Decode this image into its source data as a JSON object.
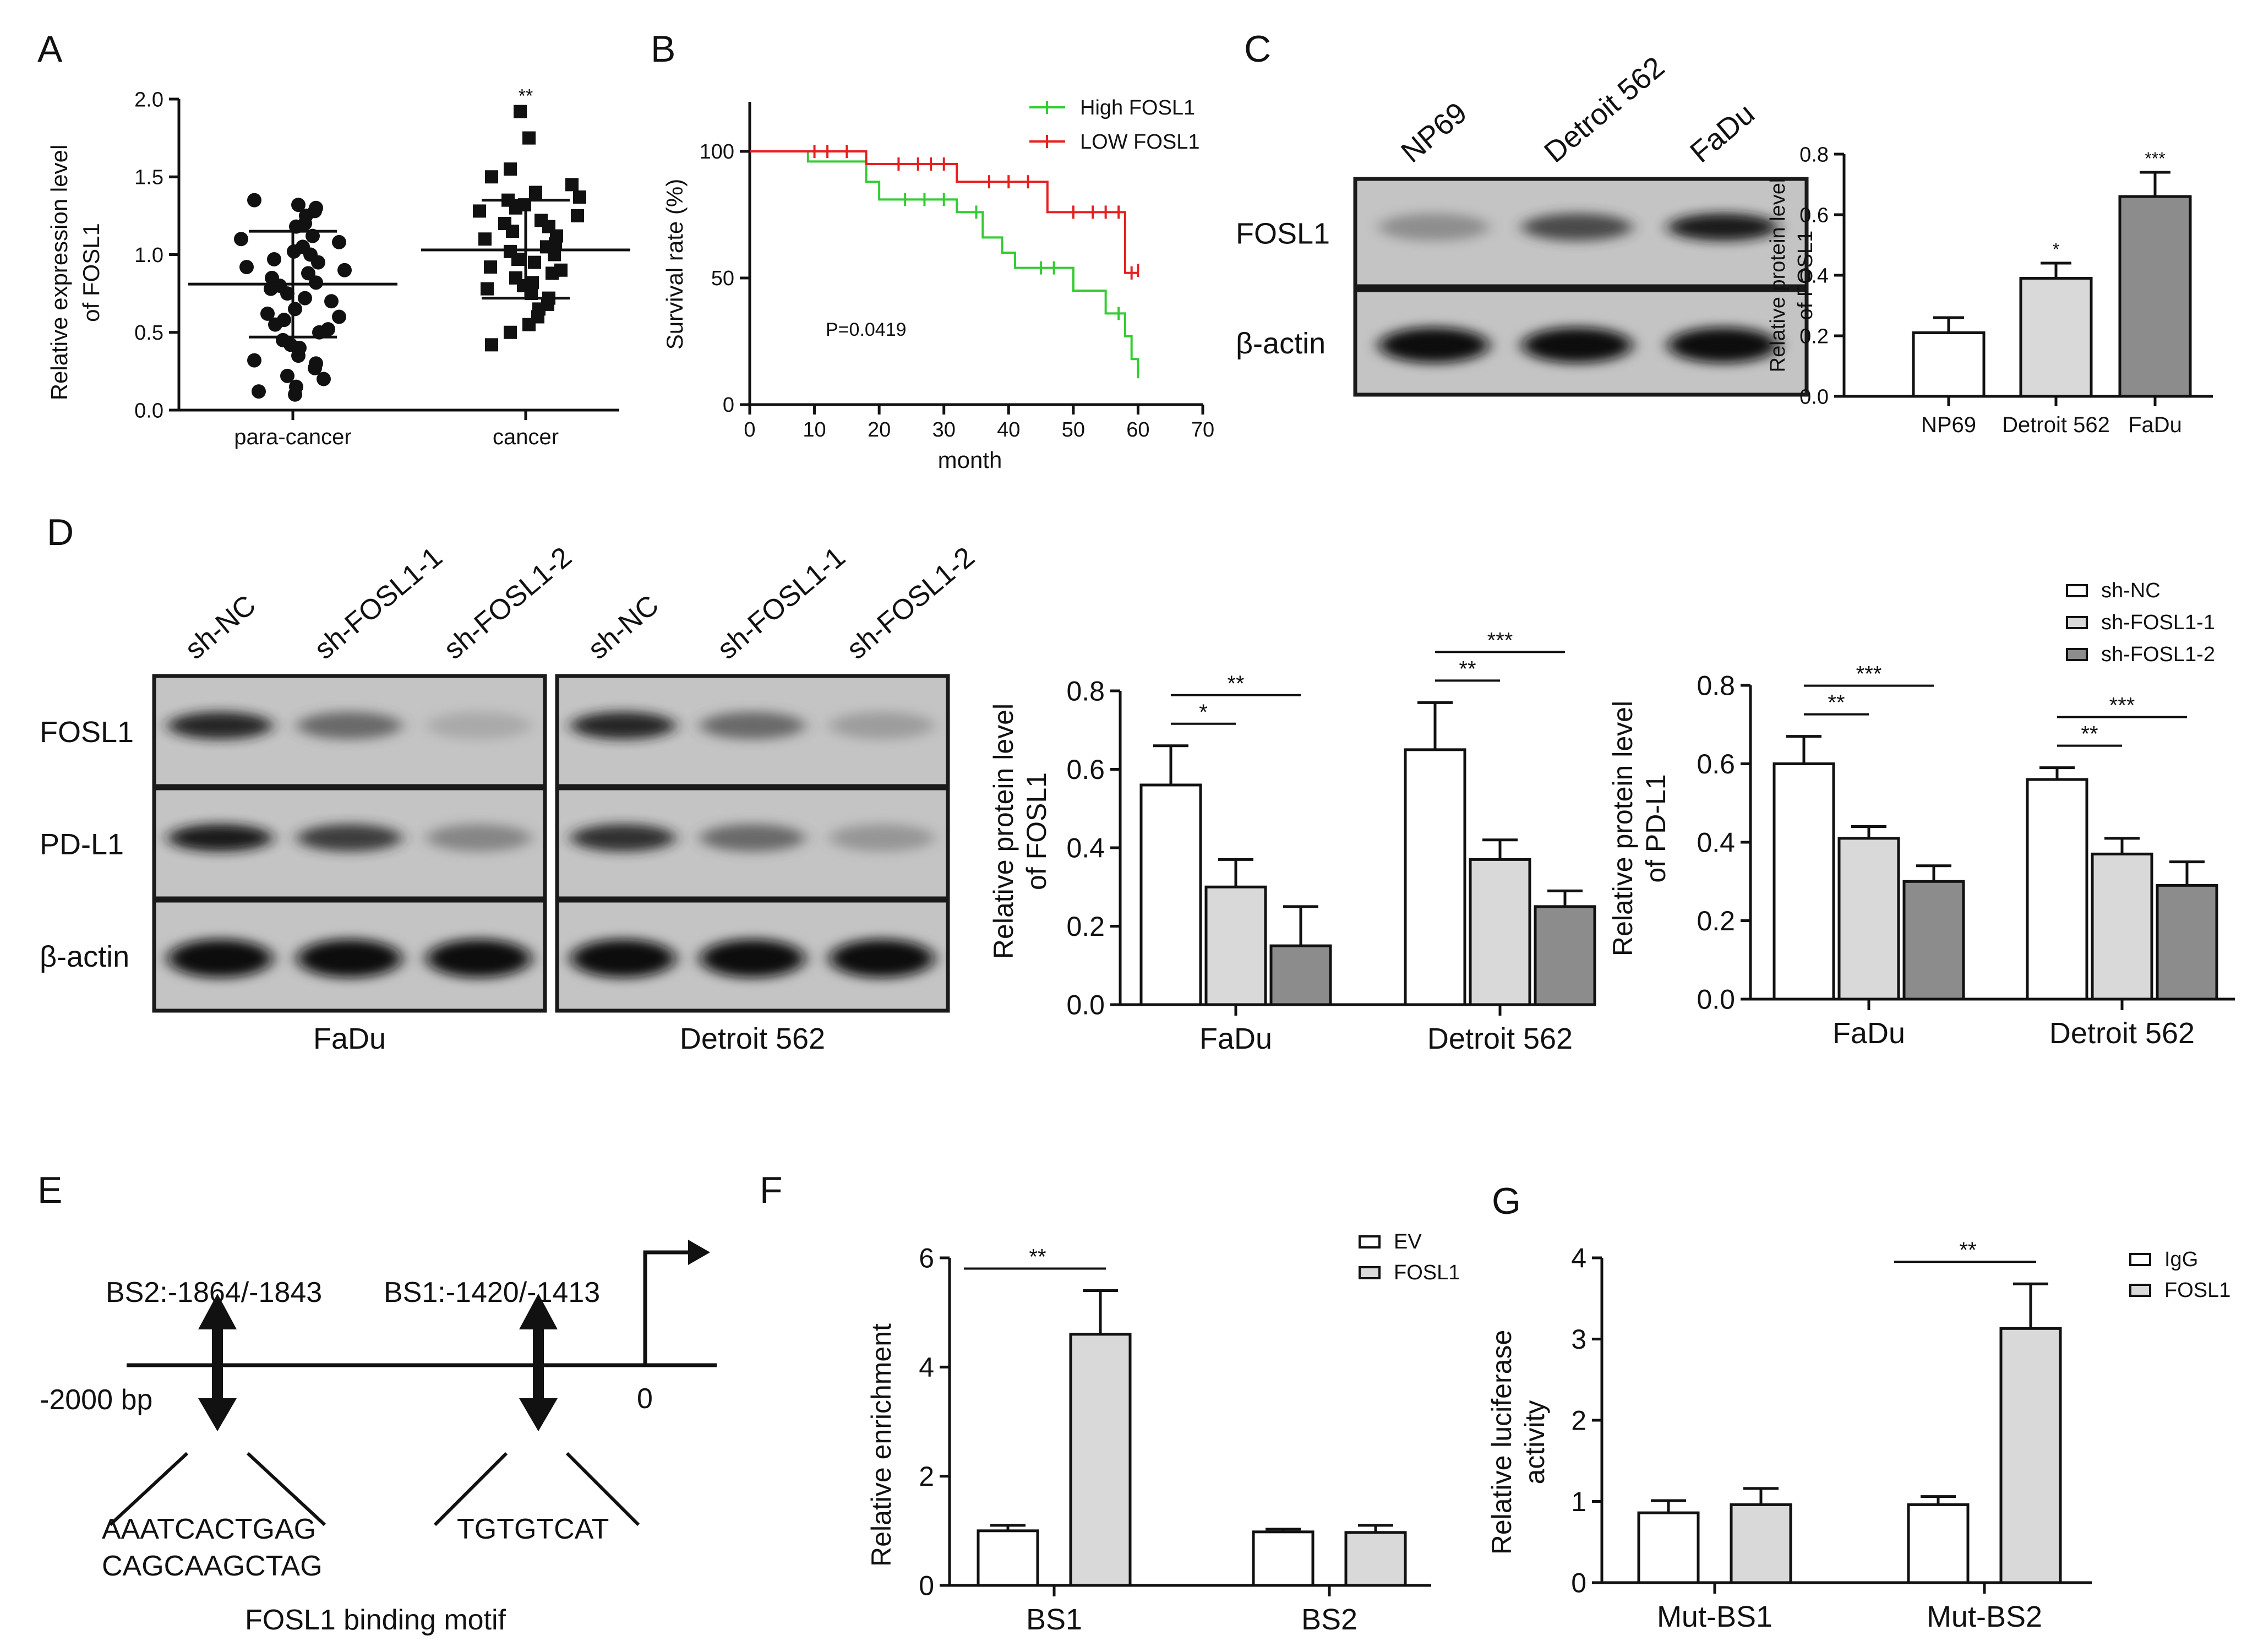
{
  "panels": {
    "A": {
      "letter": "A",
      "chart_data": {
        "type": "scatter",
        "ylabel_line1": "Relative expression level",
        "ylabel_line2": "of FOSL1",
        "ylim": [
          0,
          2.0
        ],
        "yticks": [
          "0.0",
          "0.5",
          "1.0",
          "1.5",
          "2.0"
        ],
        "tick_values": [
          0,
          0.5,
          1.0,
          1.5,
          2.0
        ],
        "groups": [
          {
            "label": "para-cancer",
            "mean": 0.81,
            "sd_low": 0.47,
            "sd_high": 1.15,
            "points": [
              0.12,
              0.1,
              0.15,
              0.22,
              0.2,
              0.27,
              0.3,
              0.35,
              0.32,
              0.42,
              0.4,
              0.45,
              0.5,
              0.52,
              0.55,
              0.58,
              0.62,
              0.6,
              0.65,
              0.7,
              0.72,
              0.75,
              0.78,
              0.8,
              0.82,
              0.85,
              0.88,
              0.9,
              0.92,
              0.95,
              0.97,
              1.0,
              1.02,
              1.05,
              1.08,
              1.1,
              1.12,
              1.18,
              1.2,
              1.25,
              1.28,
              1.3,
              1.32,
              1.35
            ]
          },
          {
            "label": "cancer",
            "mean": 1.03,
            "sd_low": 0.72,
            "sd_high": 1.35,
            "sig": "**",
            "points": [
              0.42,
              0.5,
              0.55,
              0.6,
              0.65,
              0.68,
              0.72,
              0.75,
              0.78,
              0.8,
              0.82,
              0.85,
              0.88,
              0.9,
              0.92,
              0.95,
              0.97,
              1.0,
              1.02,
              1.05,
              1.07,
              1.1,
              1.12,
              1.15,
              1.18,
              1.2,
              1.22,
              1.25,
              1.28,
              1.3,
              1.32,
              1.35,
              1.37,
              1.4,
              1.45,
              1.5,
              1.55,
              1.75,
              1.92
            ]
          }
        ]
      }
    },
    "B": {
      "letter": "B",
      "chart_data": {
        "type": "line",
        "xlabel": "month",
        "ylabel": "Survival rate (%)",
        "xlim": [
          0,
          70
        ],
        "ylim": [
          0,
          100
        ],
        "xticks": [
          "0",
          "10",
          "20",
          "30",
          "40",
          "50",
          "60",
          "70"
        ],
        "yticks": [
          "0",
          "50",
          "100"
        ],
        "annotation": "P=0.0419",
        "series": [
          {
            "name": "High FOSL1",
            "color": "#33cc33",
            "steps": [
              [
                0,
                100
              ],
              [
                9,
                100
              ],
              [
                9,
                96
              ],
              [
                18,
                96
              ],
              [
                18,
                88
              ],
              [
                20,
                88
              ],
              [
                20,
                81
              ],
              [
                32,
                81
              ],
              [
                32,
                76
              ],
              [
                36,
                76
              ],
              [
                36,
                66
              ],
              [
                39,
                66
              ],
              [
                39,
                60
              ],
              [
                41,
                60
              ],
              [
                41,
                54
              ],
              [
                50,
                54
              ],
              [
                50,
                45
              ],
              [
                55,
                45
              ],
              [
                55,
                36
              ],
              [
                58,
                36
              ],
              [
                58,
                27
              ],
              [
                59,
                27
              ],
              [
                59,
                18
              ],
              [
                60,
                18
              ],
              [
                60,
                12
              ]
            ],
            "censor": [
              [
                24,
                81
              ],
              [
                27,
                81
              ],
              [
                30,
                81
              ],
              [
                35,
                76
              ],
              [
                45,
                54
              ],
              [
                47,
                54
              ],
              [
                57,
                36
              ],
              [
                60,
                13
              ]
            ]
          },
          {
            "name": "LOW FOSL1",
            "color": "#e62020",
            "steps": [
              [
                0,
                100
              ],
              [
                18,
                100
              ],
              [
                18,
                95
              ],
              [
                32,
                95
              ],
              [
                32,
                88
              ],
              [
                46,
                88
              ],
              [
                46,
                76
              ],
              [
                58,
                76
              ],
              [
                58,
                52
              ],
              [
                60,
                52
              ]
            ],
            "censor": [
              [
                10,
                100
              ],
              [
                12,
                100
              ],
              [
                15,
                100
              ],
              [
                23,
                95
              ],
              [
                26,
                95
              ],
              [
                28,
                95
              ],
              [
                30,
                95
              ],
              [
                37,
                88
              ],
              [
                40,
                88
              ],
              [
                43,
                88
              ],
              [
                50,
                76
              ],
              [
                53,
                76
              ],
              [
                55,
                76
              ],
              [
                57,
                76
              ],
              [
                59,
                52
              ],
              [
                60,
                53
              ]
            ]
          }
        ]
      }
    },
    "C": {
      "letter": "C",
      "blot": {
        "lanes": [
          "NP69",
          "Detroit 562",
          "FaDu"
        ],
        "rows": [
          {
            "label": "FOSL1",
            "intensity": [
              0.4,
              0.75,
              0.95
            ]
          },
          {
            "label": "β-actin",
            "intensity": [
              1.0,
              1.0,
              1.0
            ]
          }
        ]
      },
      "chart_data": {
        "type": "bar",
        "ylabel_line1": "Relative protein level",
        "ylabel_line2": "of FOSL1",
        "categories": [
          "NP69",
          "Detroit 562",
          "FaDu"
        ],
        "values": [
          0.21,
          0.39,
          0.66
        ],
        "errors": [
          0.05,
          0.05,
          0.08
        ],
        "sig": [
          "",
          "*",
          "***"
        ],
        "colors": [
          "#ffffff",
          "#d9d9d9",
          "#8c8c8c"
        ],
        "ylim": [
          0,
          0.8
        ],
        "yticks": [
          "0.0",
          "0.2",
          "0.4",
          "0.6",
          "0.8"
        ]
      }
    },
    "D": {
      "letter": "D",
      "blot": {
        "groups": [
          {
            "caption": "FaDu",
            "lanes": [
              "sh-NC",
              "sh-FOSL1-1",
              "sh-FOSL1-2"
            ]
          },
          {
            "caption": "Detroit 562",
            "lanes": [
              "sh-NC",
              "sh-FOSL1-1",
              "sh-FOSL1-2"
            ]
          }
        ],
        "rows": [
          {
            "label": "FOSL1",
            "intensity": [
              [
                0.9,
                0.6,
                0.2
              ],
              [
                0.9,
                0.6,
                0.3
              ]
            ]
          },
          {
            "label": "PD-L1",
            "intensity": [
              [
                0.95,
                0.8,
                0.45
              ],
              [
                0.85,
                0.6,
                0.35
              ]
            ]
          },
          {
            "label": "β-actin",
            "intensity": [
              [
                1.0,
                1.0,
                1.0
              ],
              [
                1.0,
                1.0,
                1.0
              ]
            ]
          }
        ]
      },
      "legend": [
        "sh-NC",
        "sh-FOSL1-1",
        "sh-FOSL1-2"
      ],
      "colors": [
        "#ffffff",
        "#d9d9d9",
        "#8c8c8c"
      ],
      "chart_data": [
        {
          "type": "bar",
          "ylabel_line1": "Relative protein level",
          "ylabel_line2": "of FOSL1",
          "categories": [
            "FaDu",
            "Detroit 562"
          ],
          "series": [
            {
              "name": "sh-NC",
              "values": [
                0.56,
                0.65
              ],
              "errors": [
                0.1,
                0.12
              ]
            },
            {
              "name": "sh-FOSL1-1",
              "values": [
                0.3,
                0.37
              ],
              "errors": [
                0.07,
                0.05
              ]
            },
            {
              "name": "sh-FOSL1-2",
              "values": [
                0.15,
                0.25
              ],
              "errors": [
                0.1,
                0.04
              ]
            }
          ],
          "sig": [
            [
              {
                "to": 1,
                "label": "*"
              },
              {
                "to": 2,
                "label": "**"
              }
            ],
            [
              {
                "to": 1,
                "label": "**"
              },
              {
                "to": 2,
                "label": "***"
              }
            ]
          ],
          "ylim": [
            0,
            0.8
          ],
          "yticks": [
            "0.0",
            "0.2",
            "0.4",
            "0.6",
            "0.8"
          ]
        },
        {
          "type": "bar",
          "ylabel_line1": "Relative protein level",
          "ylabel_line2": "of PD-L1",
          "categories": [
            "FaDu",
            "Detroit 562"
          ],
          "series": [
            {
              "name": "sh-NC",
              "values": [
                0.6,
                0.56
              ],
              "errors": [
                0.07,
                0.03
              ]
            },
            {
              "name": "sh-FOSL1-1",
              "values": [
                0.41,
                0.37
              ],
              "errors": [
                0.03,
                0.04
              ]
            },
            {
              "name": "sh-FOSL1-2",
              "values": [
                0.3,
                0.29
              ],
              "errors": [
                0.04,
                0.06
              ]
            }
          ],
          "sig": [
            [
              {
                "to": 1,
                "label": "**"
              },
              {
                "to": 2,
                "label": "***"
              }
            ],
            [
              {
                "to": 1,
                "label": "**"
              },
              {
                "to": 2,
                "label": "***"
              }
            ]
          ],
          "ylim": [
            0,
            0.8
          ],
          "yticks": [
            "0.0",
            "0.2",
            "0.4",
            "0.6",
            "0.8"
          ]
        }
      ]
    },
    "E": {
      "letter": "E",
      "bs2": "BS2:-1864/-1843",
      "bs1": "BS1:-1420/-1413",
      "start": "-2000 bp",
      "end": "0",
      "motif2_line1": "AAATCACTGAG",
      "motif2_line2": "CAGCAAGCTAG",
      "motif1": "TGTGTCAT",
      "caption": "FOSL1 binding motif"
    },
    "F": {
      "letter": "F",
      "chart_data": {
        "type": "bar",
        "ylabel": "Relative enrichment",
        "categories": [
          "BS1",
          "BS2"
        ],
        "series": [
          {
            "name": "EV",
            "values": [
              1.0,
              0.98
            ],
            "errors": [
              0.1,
              0.05
            ]
          },
          {
            "name": "FOSL1",
            "values": [
              4.6,
              0.97
            ],
            "errors": [
              0.8,
              0.13
            ]
          }
        ],
        "sig": [
          "**",
          ""
        ],
        "colors": [
          "#ffffff",
          "#d9d9d9"
        ],
        "ylim": [
          0,
          6
        ],
        "yticks": [
          "0",
          "2",
          "4",
          "6"
        ]
      }
    },
    "G": {
      "letter": "G",
      "chart_data": {
        "type": "bar",
        "ylabel_line1": "Relative luciferase",
        "ylabel_line2": "activity",
        "categories": [
          "Mut-BS1",
          "Mut-BS2"
        ],
        "series": [
          {
            "name": "IgG",
            "values": [
              0.86,
              0.96
            ],
            "errors": [
              0.15,
              0.1
            ]
          },
          {
            "name": "FOSL1",
            "values": [
              0.96,
              3.13
            ],
            "errors": [
              0.2,
              0.55
            ]
          }
        ],
        "sig": [
          "",
          "**"
        ],
        "colors": [
          "#ffffff",
          "#d9d9d9"
        ],
        "ylim": [
          0,
          4
        ],
        "yticks": [
          "0",
          "1",
          "2",
          "3",
          "4"
        ]
      }
    }
  }
}
